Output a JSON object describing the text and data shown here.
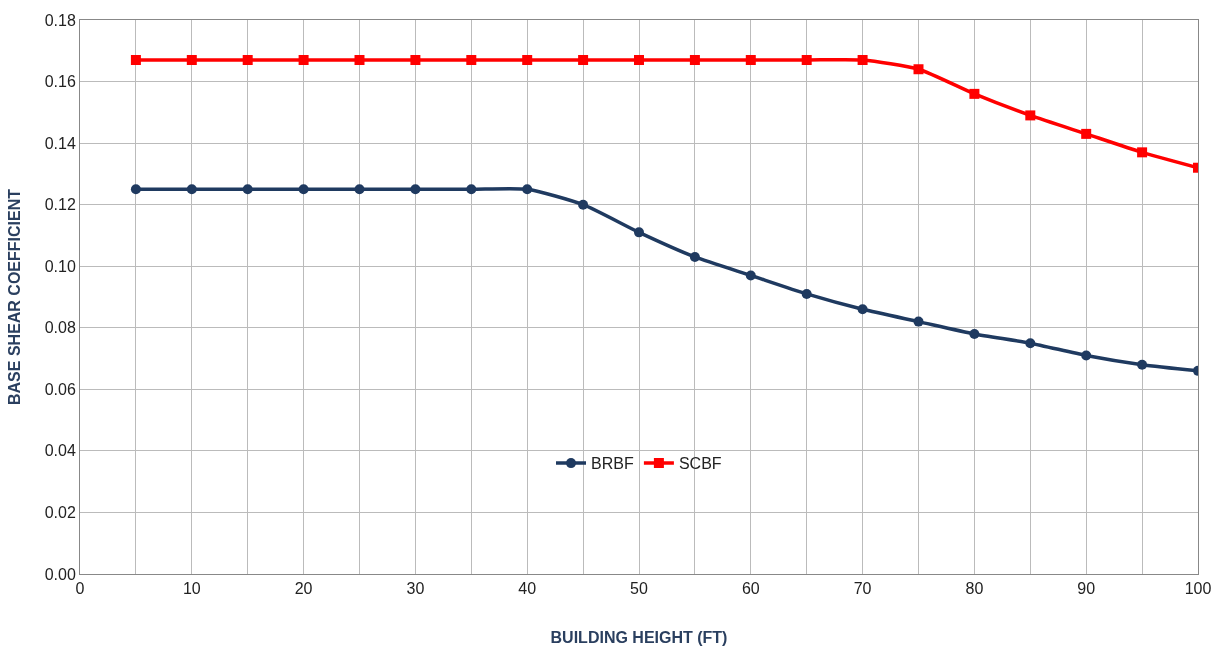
{
  "chart_data": {
    "type": "line",
    "xlabel": "BUILDING HEIGHT (FT)",
    "ylabel": "BASE SHEAR COEFFICIENT",
    "x": [
      5,
      10,
      15,
      20,
      25,
      30,
      35,
      40,
      45,
      50,
      55,
      60,
      65,
      70,
      75,
      80,
      85,
      90,
      95,
      100
    ],
    "series": [
      {
        "name": "BRBF",
        "color": "#1f3a60",
        "marker": "circle",
        "values": [
          0.125,
          0.125,
          0.125,
          0.125,
          0.125,
          0.125,
          0.125,
          0.125,
          0.12,
          0.111,
          0.103,
          0.097,
          0.091,
          0.086,
          0.082,
          0.078,
          0.075,
          0.071,
          0.068,
          0.066
        ]
      },
      {
        "name": "SCBF",
        "color": "#ff0000",
        "marker": "square",
        "values": [
          0.167,
          0.167,
          0.167,
          0.167,
          0.167,
          0.167,
          0.167,
          0.167,
          0.167,
          0.167,
          0.167,
          0.167,
          0.167,
          0.167,
          0.164,
          0.156,
          0.149,
          0.143,
          0.137,
          0.132
        ]
      }
    ],
    "xlim": [
      0,
      100
    ],
    "xticks": [
      0,
      {
        "value": 5,
        "label": null
      },
      10,
      {
        "value": 15,
        "label": null
      },
      20,
      {
        "value": 25,
        "label": null
      },
      30,
      {
        "value": 35,
        "label": null
      },
      40,
      {
        "value": 45,
        "label": null
      },
      50,
      {
        "value": 55,
        "label": null
      },
      60,
      {
        "value": 65,
        "label": null
      },
      70,
      {
        "value": 75,
        "label": null
      },
      80,
      {
        "value": 85,
        "label": null
      },
      90,
      {
        "value": 95,
        "label": null
      },
      100
    ],
    "ylim": [
      0,
      0.18
    ],
    "yticks": [
      {
        "value": 0,
        "label": "0.00"
      },
      {
        "value": 0.02,
        "label": "0.02"
      },
      {
        "value": 0.04,
        "label": "0.04"
      },
      {
        "value": 0.06,
        "label": "0.06"
      },
      {
        "value": 0.08,
        "label": "0.08"
      },
      {
        "value": 0.1,
        "label": "0.10"
      },
      {
        "value": 0.12,
        "label": "0.12"
      },
      {
        "value": 0.14,
        "label": "0.14"
      },
      {
        "value": 0.16,
        "label": "0.16"
      },
      {
        "value": 0.18,
        "label": "0.18"
      }
    ],
    "grid": true,
    "legend": "bottom",
    "line_style": "solid"
  }
}
